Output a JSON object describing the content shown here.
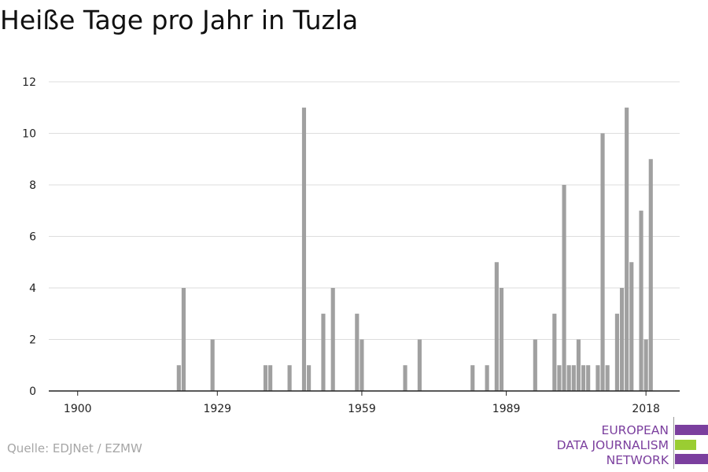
{
  "title": "Heiße Tage pro Jahr in Tuzla",
  "source": "Quelle: EDJNet / EZMW",
  "logo": {
    "lines": [
      "EUROPEAN",
      "DATA JOURNALISM",
      "NETWORK"
    ],
    "colors": [
      "#7b3f9e",
      "#9acd32",
      "#7b3f9e"
    ]
  },
  "colors": {
    "bar": "#a0a0a0",
    "grid": "#dddddd",
    "axis": "#222222",
    "tick_text": "#222222"
  },
  "chart_data": {
    "type": "bar",
    "title": "Heiße Tage pro Jahr in Tuzla",
    "xlabel": "",
    "ylabel": "",
    "xlim": [
      1894,
      2025
    ],
    "ylim": [
      0,
      12
    ],
    "x_ticks": [
      1900,
      1929,
      1959,
      1989,
      2018
    ],
    "y_ticks": [
      0,
      2,
      4,
      6,
      8,
      10,
      12
    ],
    "grid": true,
    "legend": "none",
    "years": [
      1921,
      1922,
      1928,
      1939,
      1940,
      1944,
      1947,
      1948,
      1951,
      1953,
      1958,
      1959,
      1968,
      1971,
      1982,
      1985,
      1987,
      1988,
      1995,
      1999,
      2000,
      2001,
      2002,
      2003,
      2004,
      2005,
      2006,
      2008,
      2009,
      2010,
      2012,
      2013,
      2014,
      2015,
      2017,
      2018,
      2019
    ],
    "values": [
      1,
      4,
      2,
      1,
      1,
      1,
      11,
      1,
      3,
      4,
      3,
      2,
      1,
      2,
      1,
      1,
      5,
      4,
      2,
      3,
      1,
      8,
      1,
      1,
      2,
      1,
      1,
      1,
      10,
      1,
      3,
      4,
      11,
      5,
      7,
      2,
      9
    ]
  }
}
